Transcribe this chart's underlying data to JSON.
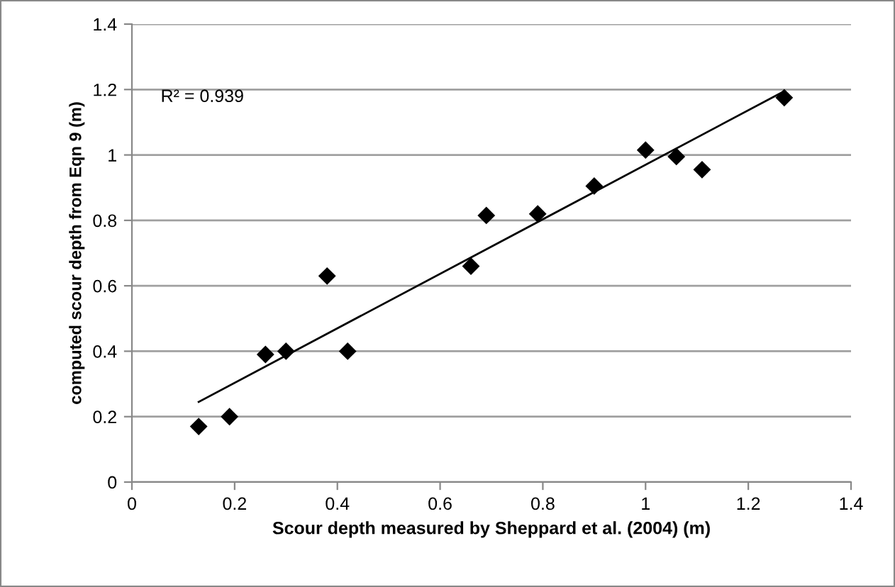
{
  "chart_data": {
    "type": "scatter",
    "xlabel": "Scour depth measured by Sheppard et al. (2004) (m)",
    "ylabel": "computed scour depth from Eqn 9 (m)",
    "xlim": [
      0,
      1.4
    ],
    "ylim": [
      0,
      1.4
    ],
    "xticks": [
      0,
      0.2,
      0.4,
      0.6,
      0.8,
      1,
      1.2,
      1.4
    ],
    "yticks": [
      0,
      0.2,
      0.4,
      0.6,
      0.8,
      1,
      1.2,
      1.4
    ],
    "grid": "y",
    "legend": false,
    "marker": "diamond",
    "annotations": [
      {
        "text": "R² = 0.939"
      }
    ],
    "series": [
      {
        "color": "#000000",
        "x": [
          0.13,
          0.19,
          0.26,
          0.3,
          0.38,
          0.42,
          0.66,
          0.69,
          0.79,
          0.9,
          1.0,
          1.06,
          1.11,
          1.27
        ],
        "values": [
          0.17,
          0.2,
          0.39,
          0.4,
          0.63,
          0.4,
          0.66,
          0.815,
          0.82,
          0.905,
          1.015,
          0.995,
          0.955,
          1.175
        ]
      },
      {
        "type": "line",
        "marker": "none",
        "color": "#000000",
        "x": [
          0.13,
          1.27
        ],
        "values": [
          0.245,
          1.195
        ]
      }
    ]
  }
}
